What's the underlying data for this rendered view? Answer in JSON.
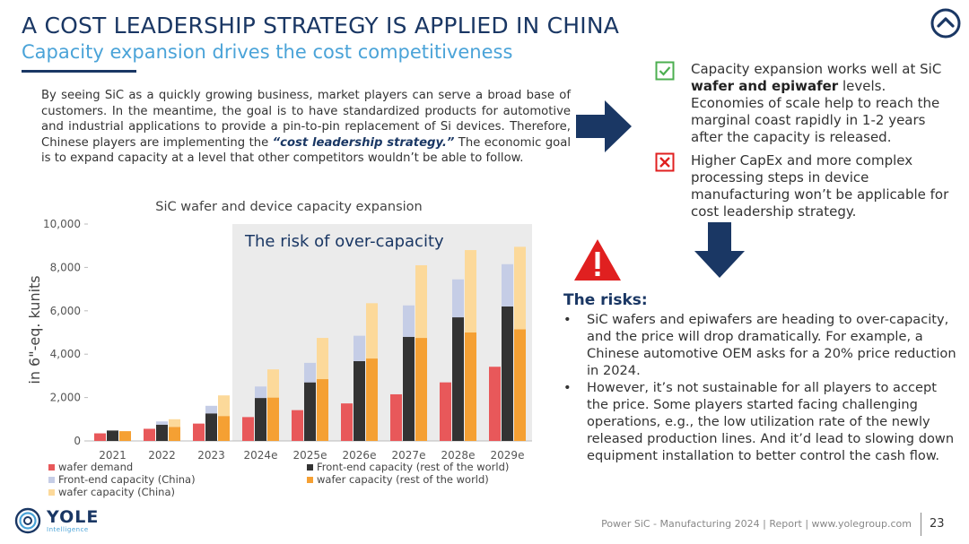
{
  "header": {
    "title": "A COST LEADERSHIP STRATEGY IS APPLIED IN CHINA",
    "subtitle": "Capacity expansion drives the cost competitiveness"
  },
  "intro": {
    "part1": "By seeing SiC as a quickly growing business, market players can serve a broad base of customers. In the meantime, the goal is to have standardized products for automotive and industrial applications to provide a pin-to-pin replacement of Si devices. Therefore, Chinese players are implementing the ",
    "emphasis": "“cost leadership strategy.”",
    "part2": " The economic goal is to expand capacity at a level that other competitors wouldn’t be able to follow."
  },
  "pro": {
    "text1": "Capacity expansion works well at SiC ",
    "bold": "wafer and epiwafer",
    "text2": " levels. Economies of scale help to reach the marginal coast rapidly in 1-2 years after the capacity is released."
  },
  "con": {
    "text": "Higher CapEx and more complex processing steps in device manufacturing won’t be applicable for cost leadership strategy."
  },
  "risks": {
    "title": "The risks:",
    "items": [
      "SiC wafers and epiwafers are heading to over-capacity, and the price will drop dramatically. For example, a Chinese automotive OEM asks for a 20% price reduction in 2024.",
      "However, it’s not sustainable for all players to accept the price. Some players started facing challenging operations, e.g., the low utilization rate of the newly released production lines. And it’d lead to slowing down equipment installation to better control the cash flow."
    ]
  },
  "footer": {
    "text": "Power SiC - Manufacturing 2024 | Report | www.yolegroup.com",
    "page": "23",
    "logo": "YOLE",
    "logo_sub": "Intelligence"
  },
  "colors": {
    "navy": "#1a3764",
    "accent": "#4aa3d8",
    "wafer_demand": "#e8585a",
    "fe_row": "#333333",
    "fe_china": "#c5cde6",
    "wafer_row": "#f5a033",
    "wafer_china": "#fcd99a"
  },
  "chart_data": {
    "type": "bar",
    "title": "SiC wafer and device capacity expansion",
    "ylabel": "in 6\"-eq. kunits",
    "ylim": [
      0,
      10000
    ],
    "yticks": [
      "0",
      "2,000",
      "4,000",
      "6,000",
      "8,000",
      "10,000"
    ],
    "annotation": "The risk of over-capacity",
    "shaded_from": "2024e",
    "categories": [
      "2021",
      "2022",
      "2023",
      "2024e",
      "2025e",
      "2026e",
      "2027e",
      "2028e",
      "2029e"
    ],
    "wafer_demand": [
      350,
      560,
      800,
      1100,
      1420,
      1730,
      2150,
      2700,
      3420
    ],
    "frontend_capacity_row": [
      480,
      750,
      1270,
      1980,
      2700,
      3680,
      4800,
      5700,
      6200
    ],
    "frontend_capacity_china": [
      0,
      150,
      350,
      530,
      900,
      1170,
      1450,
      1750,
      1950
    ],
    "wafer_capacity_row": [
      450,
      650,
      1150,
      2000,
      2850,
      3800,
      4750,
      5000,
      5150
    ],
    "wafer_capacity_china": [
      0,
      350,
      950,
      1300,
      1900,
      2550,
      3350,
      3800,
      3800
    ],
    "legend": [
      "wafer demand",
      "Front-end capacity (rest of the world)",
      "Front-end capacity (China)",
      "wafer capacity (rest of the world)",
      "wafer capacity (China)"
    ]
  }
}
